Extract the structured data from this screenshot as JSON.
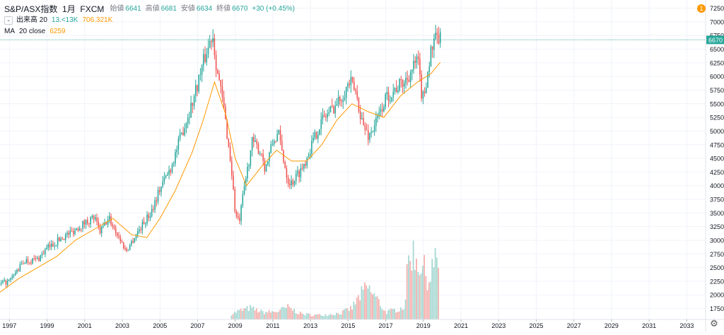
{
  "legend": {
    "title": "S&P/ASX指数",
    "interval": "1月",
    "exchange": "FXCM",
    "open_label": "始値",
    "open": "6641",
    "high_label": "高値",
    "high": "6681",
    "low_label": "安値",
    "low": "6634",
    "close_label": "終値",
    "close": "6670",
    "change": "+30 (+0.45%)",
    "volume_label": "出来高 20",
    "volume_value": "13.<13K",
    "volume_ma": "706.321K",
    "ma_label": "MA",
    "ma_params": "20 close",
    "ma_value": "6259",
    "toggle_glyph": "⌄"
  },
  "alert_badge": "1",
  "settings_icon": "gear-icon",
  "settings_glyph": "⚙",
  "chart_data": {
    "type": "candlestick",
    "interval": "1M",
    "last_price": 6670,
    "last_price_label": "6670",
    "y_ticks": [
      1750,
      2000,
      2250,
      2500,
      2750,
      3000,
      3250,
      3500,
      3750,
      4000,
      4250,
      4500,
      4750,
      5000,
      5250,
      5500,
      5750,
      6000,
      6250,
      6500,
      6750,
      7000,
      7250
    ],
    "ylim": [
      1550,
      7400
    ],
    "x_ticks": [
      "1997",
      "1999",
      "2001",
      "2003",
      "2005",
      "2007",
      "2009",
      "2011",
      "2013",
      "2015",
      "2017",
      "2019",
      "2021",
      "2023",
      "2025",
      "2027",
      "2029",
      "2031",
      "2033"
    ],
    "xlim": [
      1996.5,
      2034.0
    ],
    "colors": {
      "up": "#26a69a",
      "down": "#ef5350",
      "ma": "#ff9800",
      "up_volume": "#a6d8d2",
      "down_volume": "#f3b0ad",
      "last_price": "#26a69a"
    },
    "price_path": [
      [
        1996.4,
        2180
      ],
      [
        1997.0,
        2250
      ],
      [
        1997.8,
        2620
      ],
      [
        1998.5,
        2650
      ],
      [
        1999.0,
        2850
      ],
      [
        1999.8,
        3050
      ],
      [
        2000.3,
        3150
      ],
      [
        2000.9,
        3300
      ],
      [
        2001.5,
        3420
      ],
      [
        2001.8,
        3150
      ],
      [
        2002.3,
        3400
      ],
      [
        2002.9,
        3000
      ],
      [
        2003.2,
        2800
      ],
      [
        2003.8,
        3150
      ],
      [
        2004.5,
        3500
      ],
      [
        2005.0,
        3950
      ],
      [
        2005.6,
        4350
      ],
      [
        2006.2,
        5000
      ],
      [
        2006.7,
        5500
      ],
      [
        2007.3,
        6250
      ],
      [
        2007.8,
        6800
      ],
      [
        2008.0,
        6200
      ],
      [
        2008.4,
        5400
      ],
      [
        2008.8,
        4300
      ],
      [
        2009.0,
        3500
      ],
      [
        2009.2,
        3300
      ],
      [
        2009.5,
        4000
      ],
      [
        2009.9,
        4800
      ],
      [
        2010.4,
        4600
      ],
      [
        2010.6,
        4300
      ],
      [
        2011.0,
        4800
      ],
      [
        2011.3,
        4950
      ],
      [
        2011.5,
        4600
      ],
      [
        2011.8,
        4100
      ],
      [
        2012.0,
        4050
      ],
      [
        2012.6,
        4350
      ],
      [
        2013.0,
        4700
      ],
      [
        2013.6,
        5200
      ],
      [
        2014.0,
        5350
      ],
      [
        2014.5,
        5550
      ],
      [
        2015.1,
        5900
      ],
      [
        2015.4,
        5700
      ],
      [
        2015.8,
        5100
      ],
      [
        2016.1,
        4900
      ],
      [
        2016.6,
        5250
      ],
      [
        2017.0,
        5600
      ],
      [
        2017.6,
        5800
      ],
      [
        2018.0,
        5900
      ],
      [
        2018.7,
        6300
      ],
      [
        2018.9,
        5700
      ],
      [
        2019.0,
        5600
      ],
      [
        2019.4,
        6450
      ],
      [
        2019.7,
        6700
      ],
      [
        2019.9,
        6670
      ]
    ],
    "ma_path": [
      [
        1996.5,
        2050
      ],
      [
        1997.5,
        2300
      ],
      [
        1998.5,
        2500
      ],
      [
        1999.5,
        2700
      ],
      [
        2000.5,
        3000
      ],
      [
        2001.5,
        3200
      ],
      [
        2002.5,
        3400
      ],
      [
        2003.5,
        3100
      ],
      [
        2004.3,
        3050
      ],
      [
        2005.0,
        3400
      ],
      [
        2005.8,
        3900
      ],
      [
        2006.7,
        4600
      ],
      [
        2007.3,
        5200
      ],
      [
        2007.9,
        5900
      ],
      [
        2008.5,
        5300
      ],
      [
        2009.0,
        4500
      ],
      [
        2009.6,
        4000
      ],
      [
        2010.4,
        4350
      ],
      [
        2011.2,
        4650
      ],
      [
        2012.0,
        4450
      ],
      [
        2012.8,
        4450
      ],
      [
        2013.6,
        4750
      ],
      [
        2014.4,
        5200
      ],
      [
        2015.2,
        5500
      ],
      [
        2016.1,
        5350
      ],
      [
        2016.9,
        5250
      ],
      [
        2017.8,
        5650
      ],
      [
        2018.7,
        5900
      ],
      [
        2019.4,
        6050
      ],
      [
        2019.9,
        6259
      ]
    ],
    "volume_path": [
      [
        2008.8,
        0.08
      ],
      [
        2009.2,
        0.12
      ],
      [
        2009.8,
        0.16
      ],
      [
        2010.5,
        0.1
      ],
      [
        2011.2,
        0.11
      ],
      [
        2011.8,
        0.17
      ],
      [
        2012.5,
        0.08
      ],
      [
        2013.2,
        0.06
      ],
      [
        2013.9,
        0.07
      ],
      [
        2014.6,
        0.09
      ],
      [
        2015.2,
        0.16
      ],
      [
        2015.6,
        0.32
      ],
      [
        2016.0,
        0.45
      ],
      [
        2016.5,
        0.3
      ],
      [
        2017.0,
        0.1
      ],
      [
        2017.6,
        0.14
      ],
      [
        2018.0,
        0.18
      ],
      [
        2018.2,
        0.8
      ],
      [
        2018.4,
        0.96
      ],
      [
        2018.7,
        0.82
      ],
      [
        2019.0,
        0.72
      ],
      [
        2019.3,
        0.55
      ],
      [
        2019.5,
        0.76
      ],
      [
        2019.8,
        0.8
      ]
    ]
  }
}
